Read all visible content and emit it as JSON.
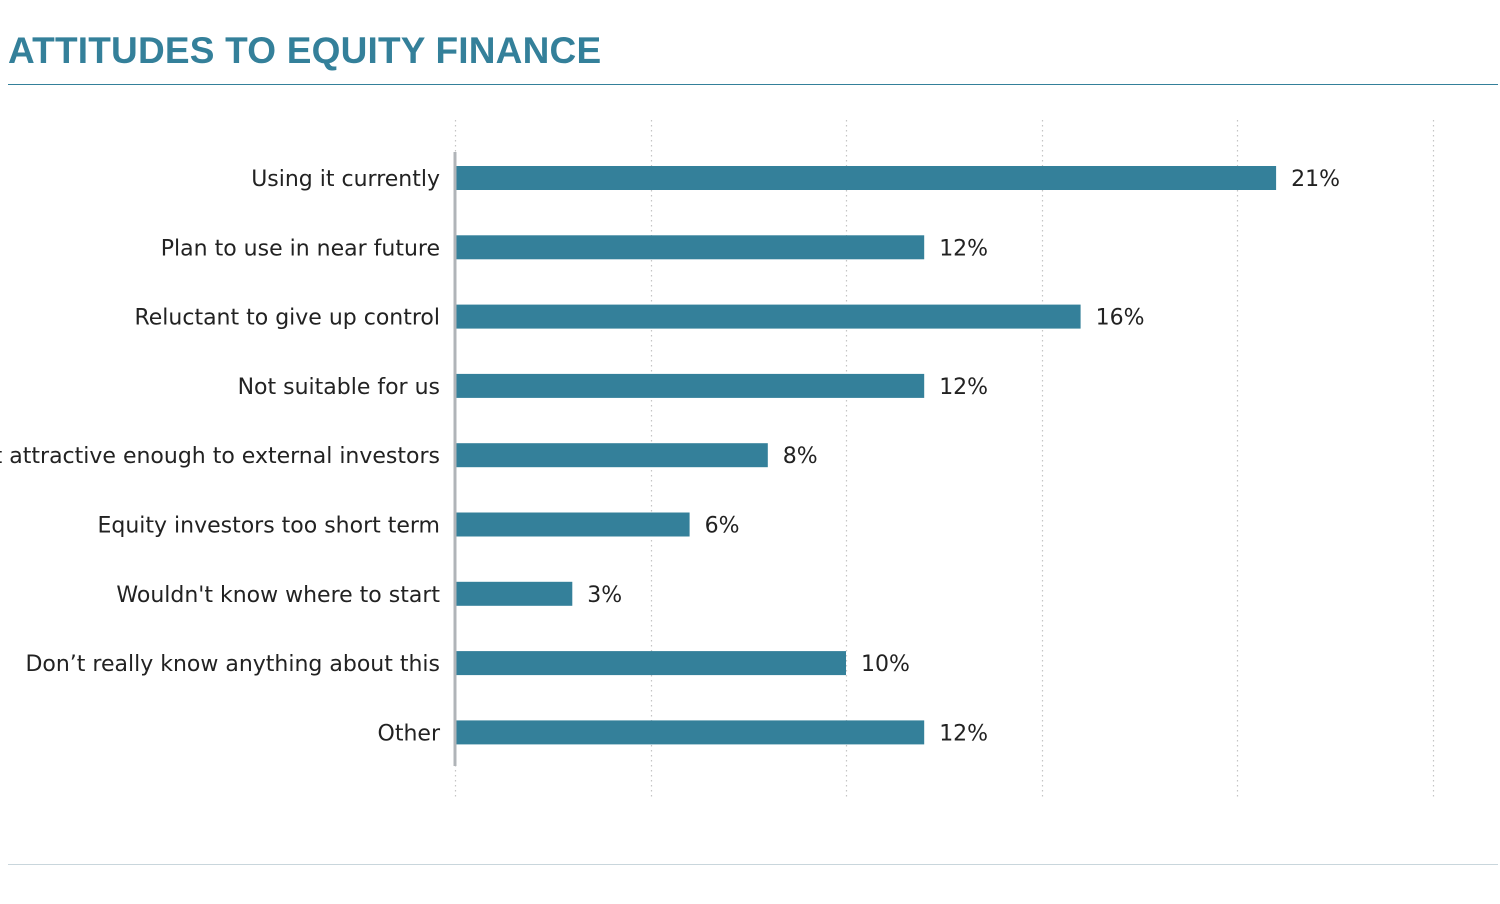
{
  "header": {
    "title": "ATTITUDES TO EQUITY FINANCE"
  },
  "colors": {
    "accent": "#34809a",
    "bar": "#34809a",
    "grid": "#c4c4c4",
    "axis": "#b0b4b8",
    "text": "#222222"
  },
  "chart_data": {
    "type": "bar",
    "orientation": "horizontal",
    "title": "ATTITUDES TO EQUITY FINANCE",
    "categories": [
      "Using it currently",
      "Plan to use in near future",
      "Reluctant to give up control",
      "Not suitable for us",
      "Not attractive enough to external investors",
      "Equity investors too short term",
      "Wouldn't know where to start",
      "Don’t really know anything about this",
      "Other"
    ],
    "values": [
      21,
      12,
      16,
      12,
      8,
      6,
      3,
      10,
      12
    ],
    "value_labels": [
      "21%",
      "12%",
      "16%",
      "12%",
      "8%",
      "6%",
      "3%",
      "10%",
      "12%"
    ],
    "xlim": [
      0,
      25
    ],
    "grid": "vertical dotted",
    "legend": "none",
    "xlabel": "",
    "ylabel": ""
  }
}
